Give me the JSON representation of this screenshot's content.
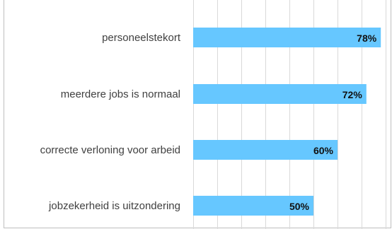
{
  "chart_data": {
    "type": "bar",
    "orientation": "horizontal",
    "categories": [
      "personeelstekort",
      "meerdere jobs is normaal",
      "correcte verloning voor arbeid",
      "jobzekerheid is uitzondering"
    ],
    "values": [
      78,
      72,
      60,
      50
    ],
    "value_labels": [
      "78%",
      "72%",
      "60%",
      "50%"
    ],
    "unit": "%",
    "xlim": [
      0,
      80
    ],
    "grid": true,
    "legend": "none",
    "colors": {
      "bar": "#66c7ff",
      "grid": "#d9d9d9",
      "label": "#404040",
      "value": "#111111"
    }
  }
}
